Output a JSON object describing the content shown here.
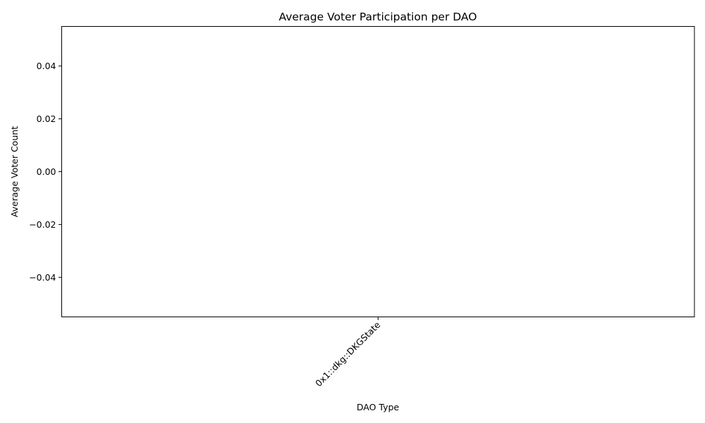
{
  "chart_data": {
    "type": "bar",
    "title": "Average Voter Participation per DAO",
    "xlabel": "DAO Type",
    "ylabel": "Average Voter Count",
    "categories": [
      "0x1::dkg::DKGState"
    ],
    "values": [
      0
    ],
    "ylim": [
      -0.055,
      0.055
    ],
    "yticks": [
      -0.04,
      -0.02,
      0.0,
      0.02,
      0.04
    ],
    "ytick_labels": [
      "−0.04",
      "−0.02",
      "0.00",
      "0.02",
      "0.04"
    ],
    "grid": false,
    "legend": "none",
    "colors": {
      "bar": "#1f77b4",
      "axes": "#000000",
      "background": "#ffffff"
    }
  }
}
